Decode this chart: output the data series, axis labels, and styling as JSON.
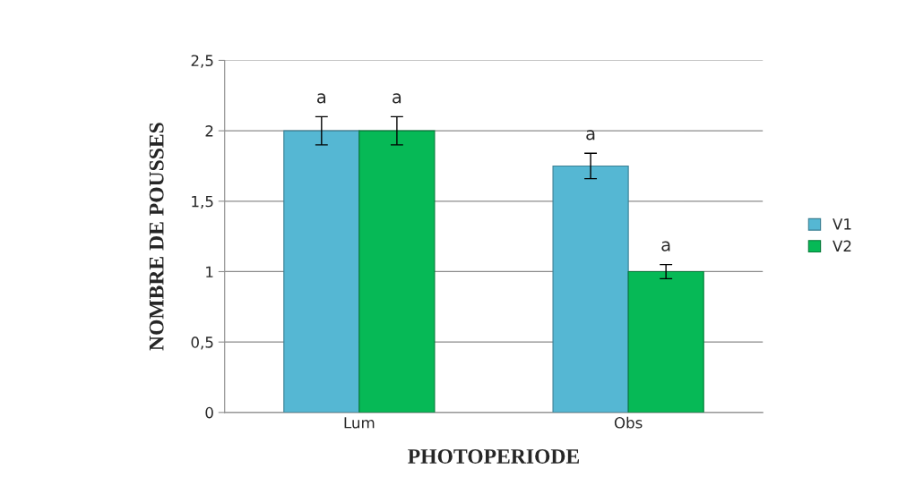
{
  "chart_data": {
    "type": "bar",
    "xlabel": "PHOTOPERIODE",
    "ylabel": "NOMBRE DE POUSSES",
    "categories": [
      "Lum",
      "Obs"
    ],
    "series": [
      {
        "name": "V1",
        "color": "#55b7d3",
        "values": [
          2,
          1.75
        ],
        "errors": [
          0.1,
          0.09
        ]
      },
      {
        "name": "V2",
        "color": "#06b956",
        "values": [
          2,
          1.0
        ],
        "errors": [
          0.1,
          0.05
        ]
      }
    ],
    "ylim": [
      0,
      2.5
    ],
    "yticks": [
      {
        "value": 0,
        "label": "0"
      },
      {
        "value": 0.5,
        "label": "0,5"
      },
      {
        "value": 1,
        "label": "1"
      },
      {
        "value": 1.5,
        "label": "1,5"
      },
      {
        "value": 2,
        "label": "2"
      },
      {
        "value": 2.5,
        "label": "2,5"
      }
    ],
    "grid": "y",
    "legend": "right",
    "annotations": [
      "a",
      "a",
      "a",
      "a"
    ]
  }
}
